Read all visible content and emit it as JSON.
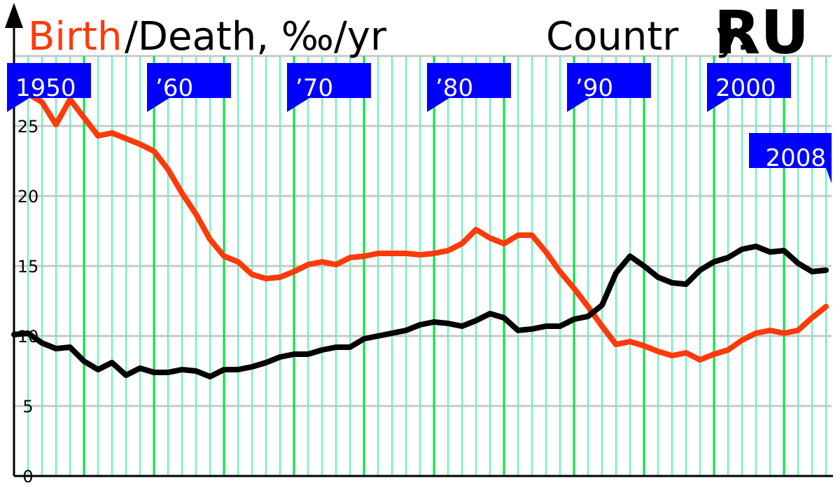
{
  "title": {
    "birth_label": "Birth",
    "death_label": "/Death, ‰/yr",
    "country_label": "Countr   y:",
    "country_code": "RU"
  },
  "colors": {
    "birth": "#ff3a0a",
    "death": "#000000",
    "major_grid": "#00e63c",
    "minor_grid": "#5ef5b8",
    "horizontal_grid": "#c8c8c8",
    "flag": "#0000ff",
    "flag_text": "#ffffff"
  },
  "chart_data": {
    "type": "line",
    "title": "Birth/Death, ‰/yr",
    "xlabel": "",
    "ylabel": "",
    "xlim": [
      1950,
      2008
    ],
    "ylim": [
      0,
      30
    ],
    "yticks": [
      0,
      5,
      10,
      15,
      20,
      25
    ],
    "grid": true,
    "x": [
      1950,
      1951,
      1952,
      1953,
      1954,
      1955,
      1956,
      1957,
      1958,
      1959,
      1960,
      1961,
      1962,
      1963,
      1964,
      1965,
      1966,
      1967,
      1968,
      1969,
      1970,
      1971,
      1972,
      1973,
      1974,
      1975,
      1976,
      1977,
      1978,
      1979,
      1980,
      1981,
      1982,
      1983,
      1984,
      1985,
      1986,
      1987,
      1988,
      1989,
      1990,
      1991,
      1992,
      1993,
      1994,
      1995,
      1996,
      1997,
      1998,
      1999,
      2000,
      2001,
      2002,
      2003,
      2004,
      2005,
      2006,
      2007,
      2008
    ],
    "series": [
      {
        "name": "Birth",
        "values": [
          26.9,
          27.3,
          26.7,
          25.1,
          26.9,
          25.6,
          24.3,
          24.5,
          24.1,
          23.7,
          23.2,
          21.9,
          20.2,
          18.7,
          16.9,
          15.7,
          15.3,
          14.4,
          14.1,
          14.2,
          14.6,
          15.1,
          15.3,
          15.1,
          15.6,
          15.7,
          15.9,
          15.9,
          15.9,
          15.8,
          15.9,
          16.1,
          16.6,
          17.6,
          17.0,
          16.6,
          17.2,
          17.2,
          16.0,
          14.6,
          13.4,
          12.1,
          10.7,
          9.4,
          9.6,
          9.3,
          8.9,
          8.6,
          8.8,
          8.3,
          8.7,
          9.0,
          9.7,
          10.2,
          10.4,
          10.2,
          10.4,
          11.3,
          12.1
        ]
      },
      {
        "name": "Death",
        "values": [
          10.1,
          10.2,
          9.5,
          9.1,
          9.2,
          8.2,
          7.6,
          8.1,
          7.2,
          7.7,
          7.4,
          7.4,
          7.6,
          7.5,
          7.1,
          7.6,
          7.6,
          7.8,
          8.1,
          8.5,
          8.7,
          8.7,
          9.0,
          9.2,
          9.2,
          9.8,
          10.0,
          10.2,
          10.4,
          10.8,
          11.0,
          10.9,
          10.7,
          11.1,
          11.6,
          11.3,
          10.4,
          10.5,
          10.7,
          10.7,
          11.2,
          11.4,
          12.2,
          14.5,
          15.7,
          15.0,
          14.2,
          13.8,
          13.7,
          14.7,
          15.3,
          15.6,
          16.2,
          16.4,
          16.0,
          16.1,
          15.2,
          14.6,
          14.7
        ]
      }
    ],
    "decade_flags": [
      {
        "year": 1950,
        "label": "1950",
        "style": "down"
      },
      {
        "year": 1960,
        "label": "’60",
        "style": "down"
      },
      {
        "year": 1970,
        "label": "’70",
        "style": "down"
      },
      {
        "year": 1980,
        "label": "’80",
        "style": "down"
      },
      {
        "year": 1990,
        "label": "’90",
        "style": "down"
      },
      {
        "year": 2000,
        "label": "2000",
        "style": "down"
      },
      {
        "year": 2008,
        "label": "2008",
        "style": "end"
      }
    ]
  }
}
